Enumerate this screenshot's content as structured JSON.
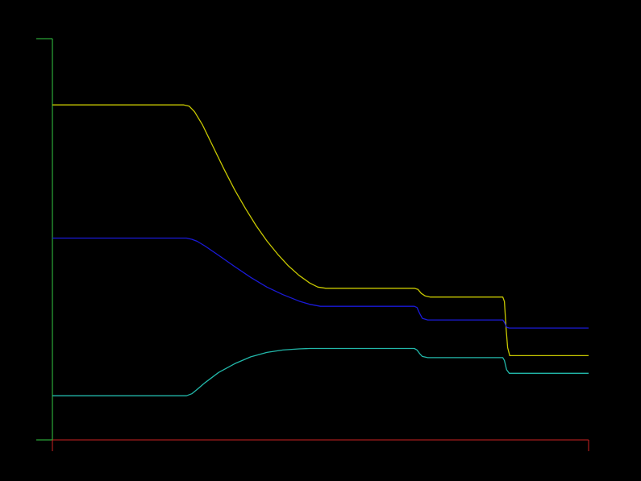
{
  "chart_data": {
    "type": "line",
    "background": "#000000",
    "axis_colors": {
      "x": "#cc2222",
      "y": "#33cc44"
    },
    "xlim": [
      0,
      100
    ],
    "ylim": [
      0,
      100
    ],
    "grid": false,
    "legend": "none",
    "series": [
      {
        "color": "#c8c800",
        "points": [
          [
            0,
            83.5
          ],
          [
            24.5,
            83.5
          ],
          [
            25.5,
            83.2
          ],
          [
            26.5,
            81.8
          ],
          [
            28,
            78.5
          ],
          [
            30,
            73.0
          ],
          [
            32,
            67.5
          ],
          [
            34,
            62.3
          ],
          [
            36,
            57.7
          ],
          [
            38,
            53.4
          ],
          [
            40,
            49.6
          ],
          [
            42,
            46.3
          ],
          [
            44,
            43.4
          ],
          [
            46,
            41.0
          ],
          [
            48,
            39.1
          ],
          [
            49.5,
            38.1
          ],
          [
            51,
            37.8
          ],
          [
            67.5,
            37.8
          ],
          [
            68.2,
            37.5
          ],
          [
            68.8,
            36.5
          ],
          [
            69.5,
            35.9
          ],
          [
            70.5,
            35.6
          ],
          [
            84,
            35.6
          ],
          [
            84.3,
            34.5
          ],
          [
            84.6,
            28
          ],
          [
            84.9,
            23
          ],
          [
            85.3,
            21.0
          ],
          [
            100,
            21.0
          ]
        ]
      },
      {
        "color": "#1a1ad9",
        "points": [
          [
            0,
            50.3
          ],
          [
            25,
            50.3
          ],
          [
            26,
            50.0
          ],
          [
            27,
            49.5
          ],
          [
            28.5,
            48.3
          ],
          [
            31,
            46.0
          ],
          [
            34,
            43.2
          ],
          [
            37,
            40.5
          ],
          [
            40,
            38.1
          ],
          [
            43,
            36.2
          ],
          [
            46,
            34.6
          ],
          [
            48,
            33.8
          ],
          [
            50,
            33.3
          ],
          [
            67.5,
            33.3
          ],
          [
            68,
            33.0
          ],
          [
            68.5,
            31.5
          ],
          [
            69,
            30.3
          ],
          [
            70,
            29.9
          ],
          [
            84,
            29.9
          ],
          [
            84.3,
            29.3
          ],
          [
            84.7,
            28.1
          ],
          [
            85.2,
            27.9
          ],
          [
            100,
            27.9
          ]
        ]
      },
      {
        "color": "#22b8aa",
        "points": [
          [
            0,
            11.0
          ],
          [
            25,
            11.0
          ],
          [
            26,
            11.5
          ],
          [
            27,
            12.6
          ],
          [
            28.5,
            14.3
          ],
          [
            31,
            16.8
          ],
          [
            34,
            19.0
          ],
          [
            37,
            20.7
          ],
          [
            40,
            21.8
          ],
          [
            43,
            22.4
          ],
          [
            46,
            22.7
          ],
          [
            48,
            22.8
          ],
          [
            67.5,
            22.8
          ],
          [
            68,
            22.4
          ],
          [
            68.5,
            21.5
          ],
          [
            69,
            20.8
          ],
          [
            70,
            20.5
          ],
          [
            84,
            20.5
          ],
          [
            84.3,
            19.8
          ],
          [
            84.7,
            17.5
          ],
          [
            85.2,
            16.6
          ],
          [
            100,
            16.6
          ]
        ]
      }
    ]
  }
}
